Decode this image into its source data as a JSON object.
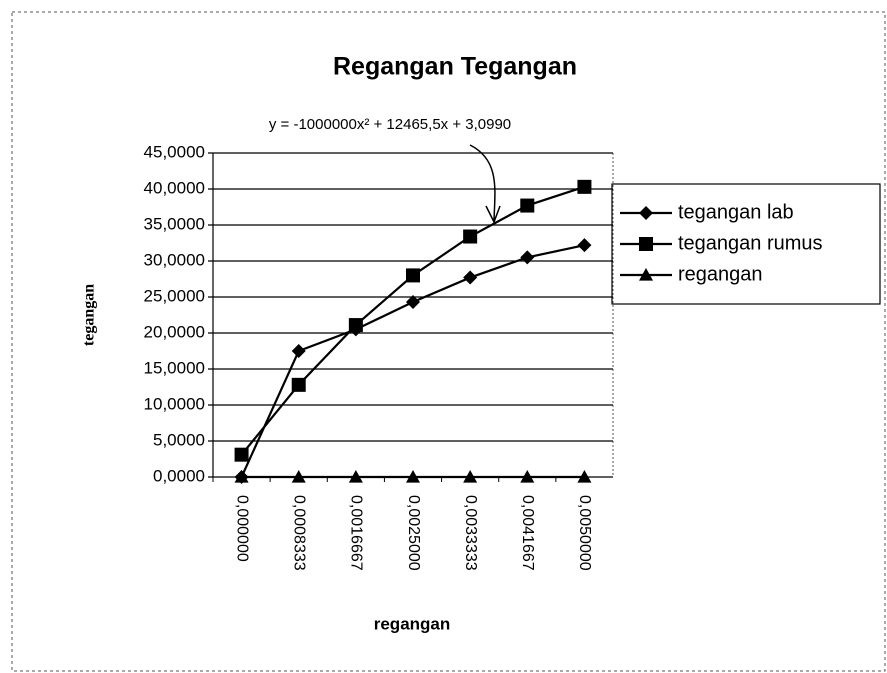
{
  "chart_data": {
    "type": "line",
    "title": "Regangan Tegangan",
    "annotation": "y = -1000000x² + 12465,5x + 3,0990",
    "x_label": "regangan",
    "y_label": "tegangan",
    "categories": [
      "0,000000",
      "0,0008333",
      "0,0016667",
      "0,0025000",
      "0,0033333",
      "0,0041667",
      "0,0050000"
    ],
    "series": [
      {
        "name": "tegangan lab",
        "color": "#000000",
        "marker": "diamond",
        "values": [
          0,
          17.5,
          20.5,
          24.3,
          27.7,
          30.5,
          32.2
        ]
      },
      {
        "name": "tegangan rumus",
        "color": "#000000",
        "marker": "square",
        "values": [
          3.1,
          12.8,
          21.1,
          28,
          33.4,
          37.7,
          40.3
        ]
      },
      {
        "name": "regangan",
        "color": "#000000",
        "marker": "triangle",
        "values": [
          0,
          0,
          0,
          0,
          0,
          0,
          0
        ]
      }
    ],
    "ylim": [
      0,
      45
    ],
    "yticks": [
      {
        "value": 0,
        "label": "0,0000"
      },
      {
        "value": 5,
        "label": "5,0000"
      },
      {
        "value": 10,
        "label": "10,0000"
      },
      {
        "value": 15,
        "label": "15,0000"
      },
      {
        "value": 20,
        "label": "20,0000"
      },
      {
        "value": 25,
        "label": "25,0000"
      },
      {
        "value": 30,
        "label": "30,0000"
      },
      {
        "value": 35,
        "label": "35,0000"
      },
      {
        "value": 40,
        "label": "40,0000"
      },
      {
        "value": 45,
        "label": "45,0000"
      }
    ],
    "grid": true,
    "legend": "right"
  }
}
